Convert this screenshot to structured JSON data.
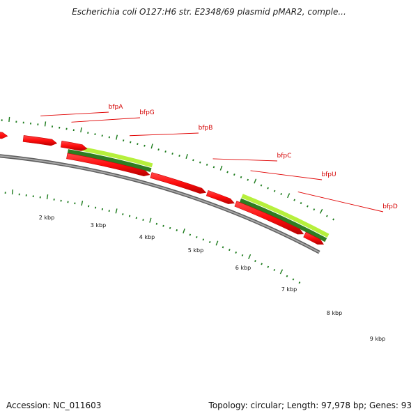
{
  "title": "Escherichia coli O127:H6 str. E2348/69 plasmid pMAR2, comple...",
  "accession": "Accession: NC_011603",
  "summary": "Topology: circular; Length: 97,978 bp; Genes: 93",
  "gene_labels": [
    "bfpA",
    "bfpG",
    "bfpB",
    "bfpC",
    "bfpU",
    "bfpD"
  ],
  "tick_labels": [
    "2 kbp",
    "3 kbp",
    "4 kbp",
    "5 kbp",
    "6 kbp",
    "7 kbp",
    "8 kbp",
    "9 kbp"
  ],
  "colors": {
    "gene_red": "#ff1a1a",
    "gene_red_dark": "#c80000",
    "feature_light_green": "#b6f03c",
    "feature_dark_green": "#2e7d22",
    "backbone_gray": "#8c8c8c",
    "tick_green": "#1a7a1a",
    "label_red": "#d40000"
  }
}
